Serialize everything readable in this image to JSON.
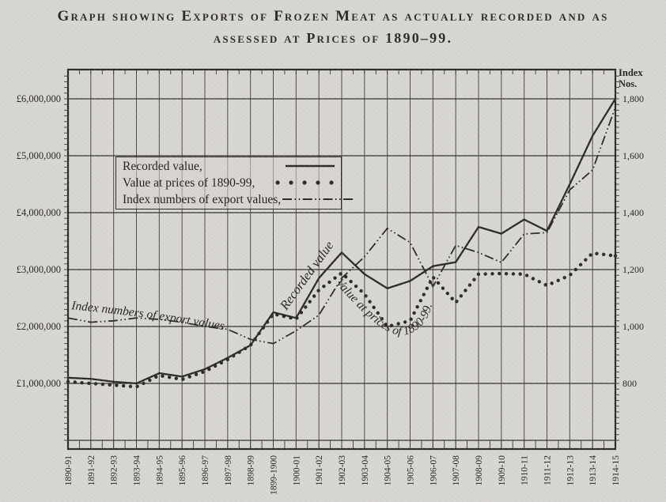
{
  "ink_color": "#2b2924",
  "paper_color": "#d8d6d1",
  "title": {
    "line1": "Graph showing Exports of Frozen Meat as actually recorded and as",
    "line2": "assessed at Prices of 1890–99."
  },
  "legend": {
    "items": [
      {
        "label": "Recorded value,",
        "style": "solid"
      },
      {
        "label": "Value at prices of 1890-99,",
        "style": "dotted"
      },
      {
        "label": "Index numbers of export values,",
        "style": "dashdotdot"
      }
    ]
  },
  "chart_data": {
    "type": "line",
    "title": "Graph showing Exports of Frozen Meat as actually recorded and as assessed at Prices of 1890-99.",
    "grid": "on",
    "legend_position": "upper-left-inside",
    "categories": [
      "1890-91",
      "1891-92",
      "1892-93",
      "1893-94",
      "1894-95",
      "1895-96",
      "1896-97",
      "1897-98",
      "1898-99",
      "1899-1900",
      "1900-01",
      "1901-02",
      "1902-03",
      "1903-04",
      "1904-05",
      "1905-06",
      "1906-07",
      "1907-08",
      "1908-09",
      "1909-10",
      "1910-11",
      "1911-12",
      "1912-13",
      "1913-14",
      "1914-15"
    ],
    "left_axis": {
      "unit": "£",
      "tick_labels": [
        "£6,000,000",
        "£5,000,000",
        "£4,000,000",
        "£3,000,000",
        "£2,000,000",
        "£1,000,000"
      ],
      "tick_values_gbp": [
        6000000,
        5000000,
        4000000,
        3000000,
        2000000,
        1000000
      ],
      "range_gbp": [
        0,
        6500000
      ]
    },
    "right_axis": {
      "header_line1": "Index",
      "header_line2": "Nos.",
      "tick_labels": [
        "1,800",
        "1,600",
        "1,400",
        "1,200",
        "1,000",
        "800"
      ],
      "tick_values": [
        1800,
        1600,
        1400,
        1200,
        1000,
        800
      ],
      "range_index": [
        650,
        1850
      ]
    },
    "series": [
      {
        "name": "Recorded value",
        "style": "solid",
        "axis": "left",
        "inline_label": "Recorded value",
        "values_million_gbp": [
          1.1,
          1.08,
          1.03,
          1.0,
          1.18,
          1.12,
          1.25,
          1.45,
          1.67,
          2.25,
          2.15,
          2.85,
          3.3,
          2.92,
          2.67,
          2.8,
          3.06,
          3.13,
          3.75,
          3.63,
          3.88,
          3.68,
          4.5,
          5.35,
          6.0
        ]
      },
      {
        "name": "Value at prices of 1890-99",
        "style": "dotted",
        "axis": "left",
        "inline_label": "Value at prices of 1890-99.",
        "values_million_gbp": [
          1.03,
          1.0,
          0.97,
          0.94,
          1.14,
          1.07,
          1.21,
          1.42,
          1.67,
          2.22,
          2.13,
          2.64,
          2.94,
          2.57,
          2.0,
          2.1,
          2.87,
          2.42,
          2.92,
          2.93,
          2.92,
          2.72,
          2.9,
          3.29,
          3.24
        ]
      },
      {
        "name": "Index numbers of export values",
        "style": "dashdotdot",
        "axis": "right",
        "inline_label": "Index numbers of export values",
        "values_index": [
          1030,
          1015,
          1020,
          1030,
          1025,
          1015,
          1000,
          990,
          955,
          940,
          985,
          1040,
          1170,
          1245,
          1345,
          1295,
          1140,
          1285,
          1260,
          1225,
          1325,
          1330,
          1480,
          1550,
          1770
        ]
      }
    ]
  }
}
